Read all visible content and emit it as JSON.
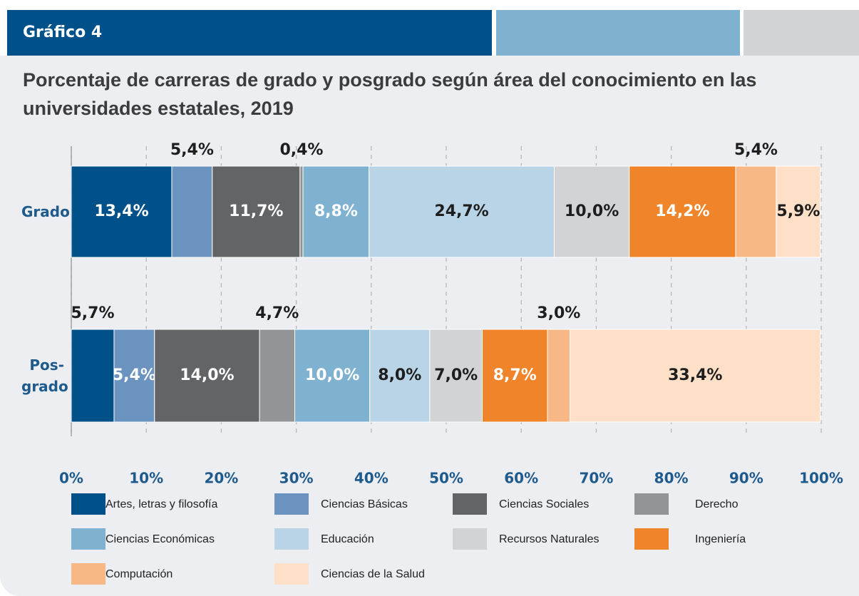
{
  "header": {
    "label": "Gráfico 4"
  },
  "chart_data": {
    "type": "stacked-barh",
    "title": "Porcentaje de carreras de grado y posgrado según área del conocimiento en las universidades estatales, 2019",
    "categories": [
      "Grado",
      "Pos-grado"
    ],
    "series": [
      {
        "name": "Artes, letras y filosofía",
        "color": "#00518a",
        "values": [
          13.4,
          5.7
        ],
        "value_labels": [
          "13,4%",
          "5,7%"
        ]
      },
      {
        "name": "Ciencias Básicas",
        "color": "#6a93bf",
        "values": [
          5.4,
          5.4
        ],
        "value_labels": [
          "5,4%",
          "5,4%"
        ]
      },
      {
        "name": "Ciencias Sociales",
        "color": "#636466",
        "values": [
          11.7,
          14.0
        ],
        "value_labels": [
          "11,7%",
          "14,0%"
        ]
      },
      {
        "name": "Derecho",
        "color": "#929497",
        "values": [
          0.4,
          4.7
        ],
        "value_labels": [
          "0,4%",
          "4,7%"
        ]
      },
      {
        "name": "Ciencias Económicas",
        "color": "#7fb1d0",
        "values": [
          8.8,
          10.0
        ],
        "value_labels": [
          "8,8%",
          "10,0%"
        ]
      },
      {
        "name": "Educación",
        "color": "#b9d4e6",
        "values": [
          24.7,
          8.0
        ],
        "value_labels": [
          "24,7%",
          "8,0%"
        ]
      },
      {
        "name": "Recursos Naturales",
        "color": "#d2d3d5",
        "values": [
          10.0,
          7.0
        ],
        "value_labels": [
          "10,0%",
          "7,0%"
        ]
      },
      {
        "name": "Ingeniería",
        "color": "#f0842b",
        "values": [
          14.2,
          8.7
        ],
        "value_labels": [
          "14,2%",
          "8,7%"
        ]
      },
      {
        "name": "Computación",
        "color": "#f8b886",
        "values": [
          5.4,
          3.0
        ],
        "value_labels": [
          "5,4%",
          "3,0%"
        ]
      },
      {
        "name": "Ciencias de la Salud",
        "color": "#fde0c7",
        "values": [
          5.9,
          33.4
        ],
        "value_labels": [
          "5,9%",
          "33,4%"
        ]
      }
    ],
    "xlim": [
      0,
      100
    ],
    "xticks": [
      {
        "value": 0,
        "label": "0%"
      },
      {
        "value": 10,
        "label": "10%"
      },
      {
        "value": 20,
        "label": "20%"
      },
      {
        "value": 30,
        "label": "30%"
      },
      {
        "value": 40,
        "label": "40%"
      },
      {
        "value": 50,
        "label": "50%"
      },
      {
        "value": 60,
        "label": "60%"
      },
      {
        "value": 70,
        "label": "70%"
      },
      {
        "value": 80,
        "label": "80%"
      },
      {
        "value": 90,
        "label": "90%"
      },
      {
        "value": 100,
        "label": "100%"
      }
    ],
    "grid": true
  }
}
